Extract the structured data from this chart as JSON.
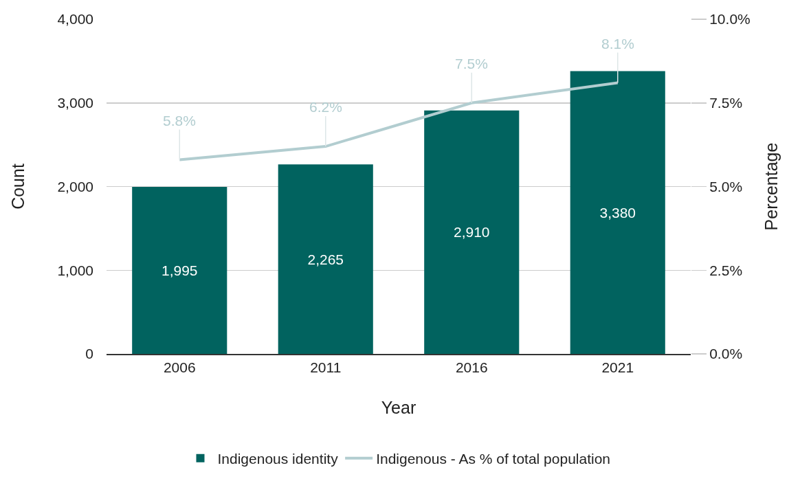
{
  "chart_data": {
    "type": "bar",
    "xlabel": "Year",
    "ylabel": "Count",
    "y2label": "Percentage",
    "categories": [
      "2006",
      "2011",
      "2016",
      "2021"
    ],
    "series": [
      {
        "name": "Indigenous identity",
        "color": "#01635f",
        "values": [
          1995,
          2265,
          2910,
          3380
        ],
        "value_labels": [
          "1,995",
          "2,265",
          "2,910",
          "3,380"
        ]
      },
      {
        "name": "Indigenous - As % of total population",
        "type": "line",
        "axis": "y2",
        "color": "#b2cdd0",
        "marker": "none",
        "line_style": "solid",
        "values": [
          5.8,
          6.2,
          7.5,
          8.1
        ],
        "value_labels": [
          "5.8%",
          "6.2%",
          "7.5%",
          "8.1%"
        ]
      }
    ],
    "ylim": [
      0,
      4000
    ],
    "yticks": [
      {
        "value": 0,
        "label": "0"
      },
      {
        "value": 1000,
        "label": "1,000"
      },
      {
        "value": 2000,
        "label": "2,000"
      },
      {
        "value": 3000,
        "label": "3,000"
      },
      {
        "value": 4000,
        "label": "4,000"
      }
    ],
    "y2lim": [
      0,
      10
    ],
    "y2ticks": [
      {
        "value": 0,
        "label": "0.0%"
      },
      {
        "value": 2.5,
        "label": "2.5%"
      },
      {
        "value": 5,
        "label": "5.0%"
      },
      {
        "value": 7.5,
        "label": "7.5%"
      },
      {
        "value": 10,
        "label": "10.0%"
      }
    ],
    "grid": "y",
    "legend": "bottom"
  }
}
